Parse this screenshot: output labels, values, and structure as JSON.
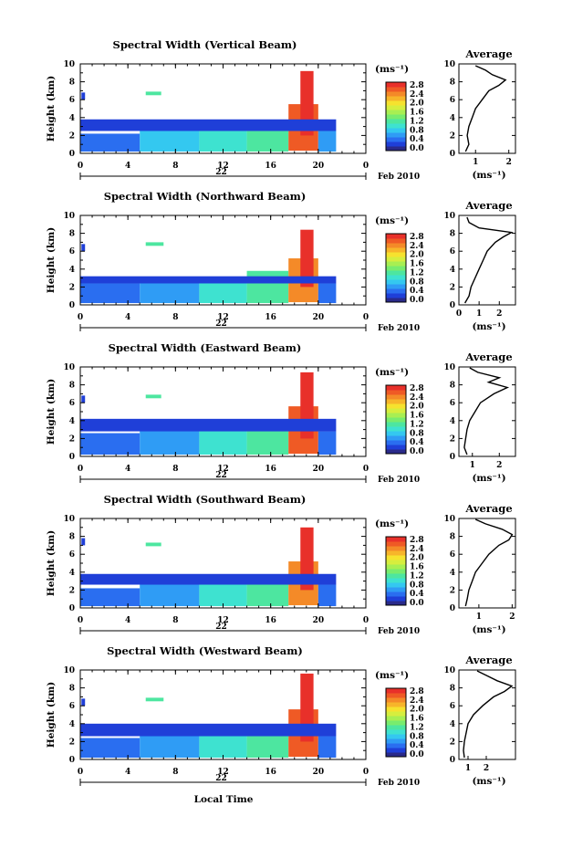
{
  "colormap": [
    "#2a2a8a",
    "#1f3fd8",
    "#2a6ef0",
    "#2f9cf5",
    "#34c8f0",
    "#3ee2d0",
    "#4de6a0",
    "#78ec6e",
    "#a8ef52",
    "#d6ee3e",
    "#f6e22e",
    "#f7b52a",
    "#f48a28",
    "#ef5a25",
    "#e8302a"
  ],
  "shared": {
    "x_label": "Local Time",
    "date_label": "22",
    "month_label": "Feb 2010",
    "y_label": "Height (km)",
    "cbar_unit": "(ms⁻¹)",
    "avg_title": "Average",
    "avg_unit": "(ms⁻¹)",
    "x_ticks": [
      "0",
      "4",
      "8",
      "12",
      "16",
      "20",
      "0"
    ],
    "y_ticks": [
      "0",
      "2",
      "4",
      "6",
      "8",
      "10"
    ],
    "cbar_ticks": [
      "0.0",
      "0.4",
      "0.8",
      "1.2",
      "1.6",
      "2.0",
      "2.4",
      "2.8"
    ]
  },
  "chart_data": [
    {
      "type": "heatmap",
      "title": "Spectral Width (Vertical Beam)",
      "xlabel": "Local Time",
      "ylabel": "Height (km)",
      "xlim": [
        0,
        24
      ],
      "ylim": [
        0,
        10
      ],
      "clim": [
        0,
        3.0
      ],
      "cells": [
        {
          "t0": 0,
          "t1": 5,
          "h0": 0.2,
          "h1": 2.2,
          "v": 0.6
        },
        {
          "t0": 5,
          "t1": 10,
          "h0": 0.2,
          "h1": 2.6,
          "v": 0.8
        },
        {
          "t0": 10,
          "t1": 14,
          "h0": 0.2,
          "h1": 3.0,
          "v": 1.1
        },
        {
          "t0": 14,
          "t1": 17.5,
          "h0": 0.2,
          "h1": 3.6,
          "v": 1.4
        },
        {
          "t0": 17.5,
          "t1": 20,
          "h0": 0.3,
          "h1": 5.5,
          "v": 2.6
        },
        {
          "t0": 18.5,
          "t1": 19.6,
          "h0": 2,
          "h1": 9.2,
          "v": 2.9
        },
        {
          "t0": 20,
          "t1": 21.5,
          "h0": 0.2,
          "h1": 2.5,
          "v": 0.7
        },
        {
          "t0": 0,
          "t1": 21.5,
          "h0": 2.5,
          "h1": 3.8,
          "v": 0.2
        },
        {
          "t0": 5.5,
          "t1": 6.8,
          "h0": 6.5,
          "h1": 6.9,
          "v": 1.3
        },
        {
          "t0": 0.1,
          "t1": 0.4,
          "h0": 6,
          "h1": 6.8,
          "v": 0.3
        }
      ],
      "avg": {
        "xlim": [
          0.5,
          2.2
        ],
        "xticks": [
          "1",
          "2"
        ],
        "profile": [
          [
            0.7,
            0.2
          ],
          [
            0.8,
            1
          ],
          [
            0.75,
            2
          ],
          [
            0.8,
            3
          ],
          [
            0.9,
            4
          ],
          [
            1.0,
            5
          ],
          [
            1.2,
            6
          ],
          [
            1.4,
            7
          ],
          [
            1.7,
            7.6
          ],
          [
            1.9,
            8.2
          ],
          [
            1.5,
            8.8
          ],
          [
            1.3,
            9.3
          ],
          [
            1.0,
            9.8
          ]
        ]
      }
    },
    {
      "type": "heatmap",
      "title": "Spectral Width (Northward Beam)",
      "xlabel": "Local Time",
      "ylabel": "Height (km)",
      "xlim": [
        0,
        24
      ],
      "ylim": [
        0,
        10
      ],
      "clim": [
        0,
        3.0
      ],
      "cells": [
        {
          "t0": 0,
          "t1": 5,
          "h0": 0.2,
          "h1": 2.4,
          "v": 0.5
        },
        {
          "t0": 5,
          "t1": 10,
          "h0": 0.2,
          "h1": 2.8,
          "v": 0.7
        },
        {
          "t0": 10,
          "t1": 14,
          "h0": 0.2,
          "h1": 3.0,
          "v": 1.0
        },
        {
          "t0": 14,
          "t1": 17.5,
          "h0": 0.2,
          "h1": 3.8,
          "v": 1.3
        },
        {
          "t0": 17.5,
          "t1": 20,
          "h0": 0.3,
          "h1": 5.2,
          "v": 2.5
        },
        {
          "t0": 18.5,
          "t1": 19.6,
          "h0": 2,
          "h1": 8.4,
          "v": 2.9
        },
        {
          "t0": 20,
          "t1": 21.5,
          "h0": 0.2,
          "h1": 2.4,
          "v": 0.6
        },
        {
          "t0": 0,
          "t1": 21.5,
          "h0": 2.4,
          "h1": 3.2,
          "v": 0.2
        },
        {
          "t0": 5.5,
          "t1": 7,
          "h0": 6.6,
          "h1": 7.0,
          "v": 1.4
        },
        {
          "t0": 0.1,
          "t1": 0.4,
          "h0": 6,
          "h1": 6.8,
          "v": 0.3
        }
      ],
      "avg": {
        "xlim": [
          0,
          2.8
        ],
        "xticks": [
          "0",
          "1",
          "2"
        ],
        "profile": [
          [
            0.3,
            0.2
          ],
          [
            0.5,
            1
          ],
          [
            0.6,
            2
          ],
          [
            0.8,
            3
          ],
          [
            1.0,
            4
          ],
          [
            1.2,
            5
          ],
          [
            1.4,
            6
          ],
          [
            1.8,
            7
          ],
          [
            2.2,
            7.6
          ],
          [
            2.6,
            8.1
          ],
          [
            1.0,
            8.6
          ],
          [
            0.5,
            9.2
          ],
          [
            0.4,
            9.8
          ]
        ]
      }
    },
    {
      "type": "heatmap",
      "title": "Spectral Width (Eastward Beam)",
      "xlabel": "Local Time",
      "ylabel": "Height (km)",
      "xlim": [
        0,
        24
      ],
      "ylim": [
        0,
        10
      ],
      "clim": [
        0,
        3.0
      ],
      "cells": [
        {
          "t0": 0,
          "t1": 5,
          "h0": 0.2,
          "h1": 2.6,
          "v": 0.5
        },
        {
          "t0": 5,
          "t1": 10,
          "h0": 0.2,
          "h1": 3.0,
          "v": 0.7
        },
        {
          "t0": 10,
          "t1": 14,
          "h0": 0.2,
          "h1": 3.2,
          "v": 1.0
        },
        {
          "t0": 14,
          "t1": 17.5,
          "h0": 0.2,
          "h1": 3.8,
          "v": 1.3
        },
        {
          "t0": 17.5,
          "t1": 20,
          "h0": 0.3,
          "h1": 5.6,
          "v": 2.6
        },
        {
          "t0": 18.5,
          "t1": 19.6,
          "h0": 2,
          "h1": 9.4,
          "v": 2.9
        },
        {
          "t0": 20,
          "t1": 21.5,
          "h0": 0.2,
          "h1": 2.8,
          "v": 0.6
        },
        {
          "t0": 0,
          "t1": 21.5,
          "h0": 2.8,
          "h1": 4.2,
          "v": 0.2
        },
        {
          "t0": 5.5,
          "t1": 6.8,
          "h0": 6.5,
          "h1": 6.9,
          "v": 1.3
        },
        {
          "t0": 0.1,
          "t1": 0.4,
          "h0": 6,
          "h1": 6.8,
          "v": 0.3
        }
      ],
      "avg": {
        "xlim": [
          0.5,
          2.6
        ],
        "xticks": [
          "1",
          "2"
        ],
        "profile": [
          [
            0.8,
            0.2
          ],
          [
            0.7,
            1
          ],
          [
            0.75,
            2
          ],
          [
            0.8,
            3
          ],
          [
            0.9,
            4
          ],
          [
            1.1,
            5
          ],
          [
            1.3,
            6
          ],
          [
            1.8,
            7
          ],
          [
            2.3,
            7.7
          ],
          [
            1.6,
            8.3
          ],
          [
            2.0,
            8.8
          ],
          [
            1.2,
            9.4
          ],
          [
            0.9,
            9.9
          ]
        ]
      }
    },
    {
      "type": "heatmap",
      "title": "Spectral Width (Southward Beam)",
      "xlabel": "Local Time",
      "ylabel": "Height (km)",
      "xlim": [
        0,
        24
      ],
      "ylim": [
        0,
        10
      ],
      "clim": [
        0,
        3.0
      ],
      "cells": [
        {
          "t0": 0,
          "t1": 5,
          "h0": 0.2,
          "h1": 2.2,
          "v": 0.5
        },
        {
          "t0": 5,
          "t1": 10,
          "h0": 0.2,
          "h1": 3.0,
          "v": 0.7
        },
        {
          "t0": 10,
          "t1": 14,
          "h0": 0.2,
          "h1": 3.0,
          "v": 1.0
        },
        {
          "t0": 14,
          "t1": 17.5,
          "h0": 0.2,
          "h1": 3.6,
          "v": 1.3
        },
        {
          "t0": 17.5,
          "t1": 20,
          "h0": 0.3,
          "h1": 5.2,
          "v": 2.5
        },
        {
          "t0": 18.5,
          "t1": 19.6,
          "h0": 2,
          "h1": 9.0,
          "v": 2.9
        },
        {
          "t0": 20,
          "t1": 21.5,
          "h0": 0.2,
          "h1": 2.6,
          "v": 0.6
        },
        {
          "t0": 0,
          "t1": 21.5,
          "h0": 2.6,
          "h1": 3.8,
          "v": 0.2
        },
        {
          "t0": 5.5,
          "t1": 6.8,
          "h0": 6.9,
          "h1": 7.3,
          "v": 1.3
        },
        {
          "t0": 0.1,
          "t1": 0.4,
          "h0": 7,
          "h1": 7.8,
          "v": 0.3
        }
      ],
      "avg": {
        "xlim": [
          0.4,
          2.1
        ],
        "xticks": [
          "1",
          "2"
        ],
        "profile": [
          [
            0.6,
            0.2
          ],
          [
            0.65,
            1
          ],
          [
            0.7,
            2
          ],
          [
            0.8,
            3
          ],
          [
            0.9,
            4
          ],
          [
            1.1,
            5
          ],
          [
            1.3,
            6
          ],
          [
            1.6,
            7
          ],
          [
            1.9,
            7.6
          ],
          [
            2.0,
            8.2
          ],
          [
            1.7,
            8.8
          ],
          [
            1.2,
            9.4
          ],
          [
            0.9,
            9.9
          ]
        ]
      }
    },
    {
      "type": "heatmap",
      "title": "Spectral Width (Westward Beam)",
      "xlabel": "Local Time",
      "ylabel": "Height (km)",
      "xlim": [
        0,
        24
      ],
      "ylim": [
        0,
        10
      ],
      "clim": [
        0,
        3.0
      ],
      "cells": [
        {
          "t0": 0,
          "t1": 5,
          "h0": 0.2,
          "h1": 2.4,
          "v": 0.5
        },
        {
          "t0": 5,
          "t1": 10,
          "h0": 0.2,
          "h1": 2.8,
          "v": 0.7
        },
        {
          "t0": 10,
          "t1": 14,
          "h0": 0.2,
          "h1": 3.0,
          "v": 1.0
        },
        {
          "t0": 14,
          "t1": 17.5,
          "h0": 0.2,
          "h1": 3.6,
          "v": 1.3
        },
        {
          "t0": 17.5,
          "t1": 20,
          "h0": 0.3,
          "h1": 5.6,
          "v": 2.6
        },
        {
          "t0": 18.5,
          "t1": 19.6,
          "h0": 2,
          "h1": 9.6,
          "v": 2.9
        },
        {
          "t0": 20,
          "t1": 21.5,
          "h0": 0.2,
          "h1": 2.6,
          "v": 0.6
        },
        {
          "t0": 0,
          "t1": 21.5,
          "h0": 2.6,
          "h1": 4.0,
          "v": 0.2
        },
        {
          "t0": 5.5,
          "t1": 7,
          "h0": 6.5,
          "h1": 6.9,
          "v": 1.4
        },
        {
          "t0": 0.1,
          "t1": 0.4,
          "h0": 6,
          "h1": 6.8,
          "v": 0.3
        }
      ],
      "avg": {
        "xlim": [
          0.5,
          3.6
        ],
        "xticks": [
          "1",
          "2"
        ],
        "profile": [
          [
            0.8,
            0.2
          ],
          [
            0.75,
            1
          ],
          [
            0.8,
            2
          ],
          [
            0.9,
            3
          ],
          [
            1.0,
            4
          ],
          [
            1.3,
            5
          ],
          [
            1.8,
            6
          ],
          [
            2.4,
            7
          ],
          [
            3.0,
            7.6
          ],
          [
            3.4,
            8.2
          ],
          [
            2.6,
            8.8
          ],
          [
            2.0,
            9.4
          ],
          [
            1.5,
            9.9
          ]
        ]
      }
    }
  ]
}
